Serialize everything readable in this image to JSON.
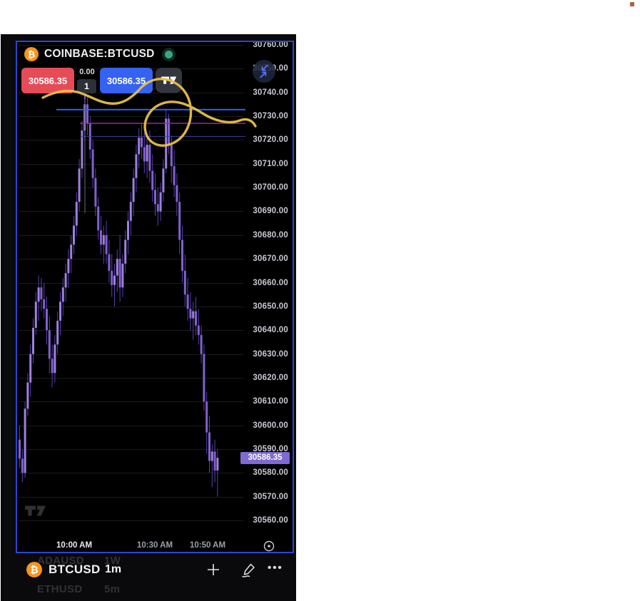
{
  "header": {
    "symbol": "COINBASE:BTCUSD"
  },
  "trade_panel": {
    "sell_price": "30586.35",
    "spread": "0.00",
    "quantity": "1",
    "buy_price": "30586.35"
  },
  "price_scale": {
    "current_price": "30586.35"
  },
  "bottom_bar": {
    "symbol": "BTCUSD",
    "interval": "1m",
    "more_label": "•••"
  },
  "background_list": {
    "rows": [
      {
        "symbol": "ADAUSD",
        "interval": "1W"
      },
      {
        "symbol": "ETHUSD",
        "interval": "5m"
      }
    ]
  },
  "chart_data": {
    "type": "candlestick",
    "title": "COINBASE:BTCUSD",
    "exchange": "COINBASE",
    "symbol": "BTCUSD",
    "interval": "1m",
    "price_axis": {
      "ticks": [
        30760,
        30750,
        30740,
        30730,
        30720,
        30710,
        30700,
        30690,
        30680,
        30670,
        30660,
        30650,
        30640,
        30630,
        30620,
        30610,
        30600,
        30590,
        30580,
        30570,
        30560
      ],
      "current_price": 30586.35,
      "visible_range": [
        30555,
        30762
      ]
    },
    "time_axis": {
      "ticks": [
        "10:00 AM",
        "10:30 AM",
        "10:50 AM"
      ],
      "visible_span": "approx 9:40 AM - 10:54 AM, 1-minute bars"
    },
    "candles_ohlc": [
      [
        30594,
        30600,
        30582,
        30586
      ],
      [
        30586,
        30590,
        30576,
        30580
      ],
      [
        30580,
        30610,
        30578,
        30607
      ],
      [
        30607,
        30622,
        30604,
        30618
      ],
      [
        30618,
        30634,
        30612,
        30630
      ],
      [
        30630,
        30645,
        30626,
        30641
      ],
      [
        30641,
        30656,
        30638,
        30652
      ],
      [
        30652,
        30663,
        30644,
        30658
      ],
      [
        30658,
        30662,
        30648,
        30653
      ],
      [
        30653,
        30660,
        30645,
        30649
      ],
      [
        30649,
        30654,
        30634,
        30640
      ],
      [
        30640,
        30646,
        30622,
        30628
      ],
      [
        30628,
        30634,
        30616,
        30622
      ],
      [
        30622,
        30638,
        30618,
        30634
      ],
      [
        30634,
        30648,
        30630,
        30644
      ],
      [
        30644,
        30656,
        30638,
        30652
      ],
      [
        30652,
        30662,
        30646,
        30658
      ],
      [
        30658,
        30668,
        30652,
        30664
      ],
      [
        30664,
        30674,
        30658,
        30670
      ],
      [
        30670,
        30680,
        30664,
        30676
      ],
      [
        30676,
        30688,
        30672,
        30684
      ],
      [
        30684,
        30698,
        30680,
        30694
      ],
      [
        30694,
        30712,
        30690,
        30708
      ],
      [
        30708,
        30728,
        30704,
        30724
      ],
      [
        30724,
        30739,
        30720,
        30735
      ],
      [
        30735,
        30738,
        30722,
        30727
      ],
      [
        30727,
        30730,
        30712,
        30716
      ],
      [
        30716,
        30720,
        30700,
        30704
      ],
      [
        30704,
        30708,
        30688,
        30692
      ],
      [
        30692,
        30696,
        30678,
        30682
      ],
      [
        30682,
        30688,
        30672,
        30676
      ],
      [
        30676,
        30684,
        30668,
        30680
      ],
      [
        30680,
        30686,
        30668,
        30672
      ],
      [
        30672,
        30678,
        30660,
        30665
      ],
      [
        30665,
        30672,
        30654,
        30659
      ],
      [
        30659,
        30668,
        30650,
        30663
      ],
      [
        30663,
        30674,
        30656,
        30670
      ],
      [
        30670,
        30680,
        30652,
        30658
      ],
      [
        30658,
        30672,
        30654,
        30668
      ],
      [
        30668,
        30682,
        30664,
        30678
      ],
      [
        30678,
        30690,
        30672,
        30686
      ],
      [
        30686,
        30698,
        30680,
        30694
      ],
      [
        30694,
        30708,
        30688,
        30704
      ],
      [
        30704,
        30718,
        30698,
        30714
      ],
      [
        30714,
        30725,
        30708,
        30721
      ],
      [
        30721,
        30727,
        30712,
        30717
      ],
      [
        30717,
        30723,
        30706,
        30711
      ],
      [
        30711,
        30721,
        30704,
        30718
      ],
      [
        30718,
        30724,
        30702,
        30707
      ],
      [
        30707,
        30714,
        30694,
        30699
      ],
      [
        30699,
        30706,
        30688,
        30693
      ],
      [
        30693,
        30700,
        30684,
        30690
      ],
      [
        30690,
        30702,
        30686,
        30698
      ],
      [
        30698,
        30712,
        30694,
        30708
      ],
      [
        30708,
        30733,
        30706,
        30729
      ],
      [
        30729,
        30731,
        30714,
        30718
      ],
      [
        30718,
        30722,
        30702,
        30709
      ],
      [
        30709,
        30716,
        30696,
        30701
      ],
      [
        30701,
        30706,
        30688,
        30694
      ],
      [
        30694,
        30698,
        30672,
        30678
      ],
      [
        30678,
        30684,
        30660,
        30665
      ],
      [
        30665,
        30672,
        30650,
        30655
      ],
      [
        30655,
        30662,
        30644,
        30649
      ],
      [
        30649,
        30656,
        30640,
        30645
      ],
      [
        30645,
        30652,
        30636,
        30648
      ],
      [
        30648,
        30654,
        30638,
        30642
      ],
      [
        30642,
        30649,
        30634,
        30638
      ],
      [
        30638,
        30642,
        30626,
        30630
      ],
      [
        30630,
        30634,
        30606,
        30610
      ],
      [
        30610,
        30614,
        30588,
        30597
      ],
      [
        30597,
        30604,
        30580,
        30585
      ],
      [
        30585,
        30592,
        30574,
        30589
      ],
      [
        30589,
        30594,
        30576,
        30581
      ],
      [
        30581,
        30590,
        30570,
        30586.35
      ]
    ],
    "drawings": {
      "horizontal_lines": [
        {
          "price": 30732.8,
          "color": "#2962ff",
          "width": 2
        },
        {
          "price": 30727.0,
          "color": "#9c27b0",
          "width": 1.5
        },
        {
          "price": 30721.5,
          "color": "#3b3f9e",
          "width": 1
        }
      ],
      "vertical_line": {
        "color": "#63676f",
        "accent_color": "#7e57c2",
        "at_time": "10:04 AM (first peak)"
      },
      "freehand_circle": {
        "color": "#e7c04a",
        "around": "spike candle ~10:35 AM touching 30733"
      }
    },
    "colors": {
      "candle_up": "#9d80de",
      "candle_down": "#8160cf",
      "wick": "#5a3fae",
      "background": "#000000",
      "grid": "#1b1b1f",
      "axis_text": "#c7cad1",
      "current_price_tag": "#7e6ad2",
      "card_border": "#2b46d4",
      "sell_button": "#e54c57",
      "buy_button": "#3562f0"
    },
    "legend_position": "none",
    "grid": true
  }
}
